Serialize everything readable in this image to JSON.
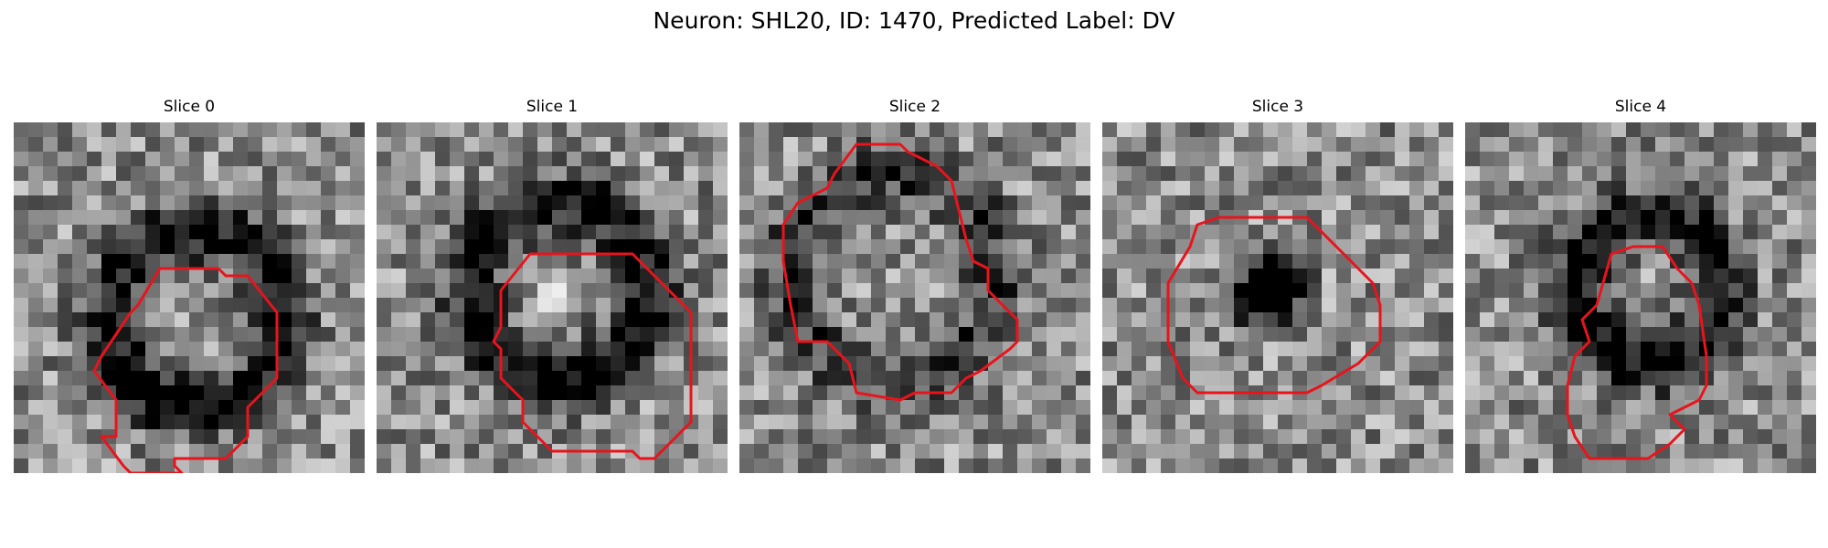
{
  "figure": {
    "title": "Neuron: SHL20, ID: 1470, Predicted Label: DV",
    "contour_color": "#e8141c",
    "colormap": "gray",
    "panels": [
      {
        "title": "Slice 0",
        "seed": 11,
        "image": "grayscale patch with dark ring around center, red contour encloses lower-center region"
      },
      {
        "title": "Slice 1",
        "seed": 23,
        "image": "grayscale patch with dark ring and bright center spot, red contour around center"
      },
      {
        "title": "Slice 2",
        "seed": 37,
        "image": "grayscale patch with irregular red contour in upper-left region"
      },
      {
        "title": "Slice 3",
        "seed": 41,
        "image": "grayscale patch with dark center blob, red octagonal contour"
      },
      {
        "title": "Slice 4",
        "seed": 53,
        "image": "grayscale patch with dark band, red contour right of center"
      }
    ]
  }
}
